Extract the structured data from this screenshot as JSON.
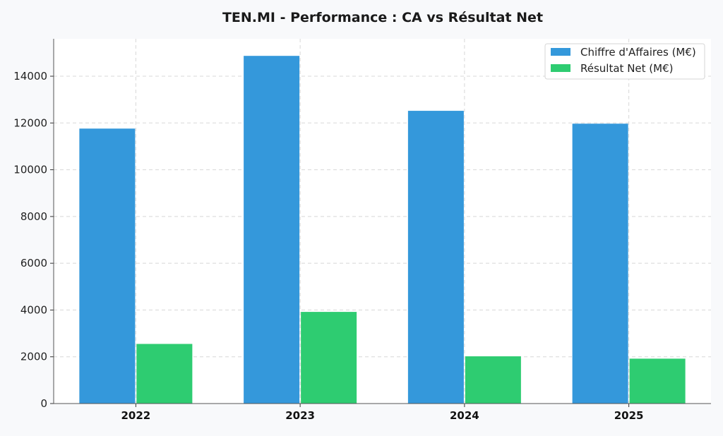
{
  "chart_data": {
    "type": "bar",
    "title": "TEN.MI - Performance : CA vs Résultat Net",
    "xlabel": "",
    "ylabel": "",
    "categories": [
      "2022",
      "2023",
      "2024",
      "2025"
    ],
    "series": [
      {
        "name": "Chiffre d'Affaires (M€)",
        "color": "#3498db",
        "values": [
          11760,
          14870,
          12520,
          11970
        ]
      },
      {
        "name": "Résultat Net (M€)",
        "color": "#2ecc71",
        "values": [
          2550,
          3920,
          2020,
          1920
        ]
      }
    ],
    "ylim": [
      0,
      15600
    ],
    "yticks": [
      0,
      2000,
      4000,
      6000,
      8000,
      10000,
      12000,
      14000
    ],
    "ytick_labels": [
      "0",
      "2000",
      "4000",
      "6000",
      "8000",
      "10000",
      "12000",
      "14000"
    ],
    "grid": true,
    "legend_position": "top-right"
  }
}
